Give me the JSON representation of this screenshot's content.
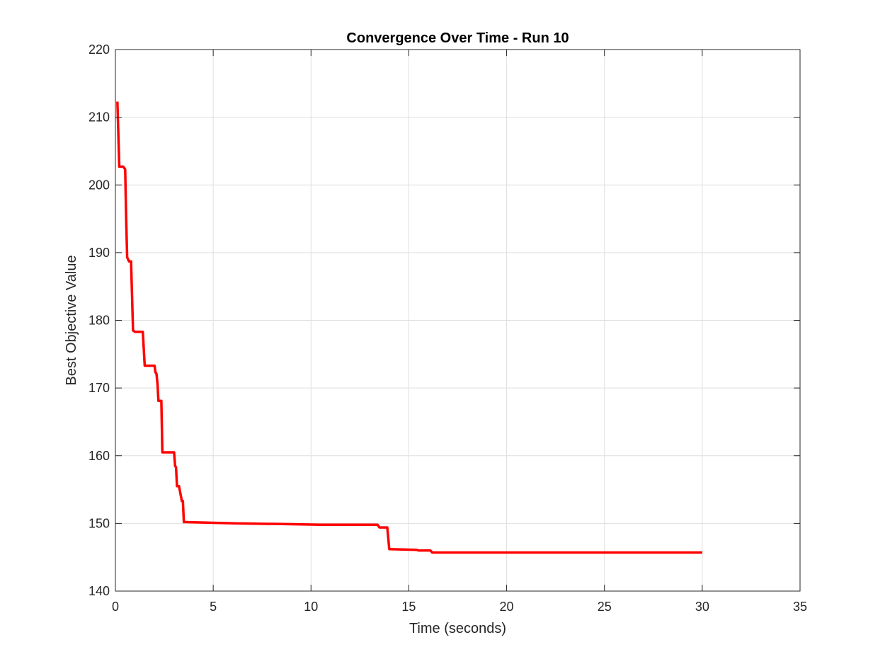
{
  "chart_data": {
    "type": "line",
    "title": "Convergence Over Time - Run 10",
    "xlabel": "Time (seconds)",
    "ylabel": "Best Objective Value",
    "xlim": [
      0,
      35
    ],
    "ylim": [
      140,
      220
    ],
    "xticks": [
      0,
      5,
      10,
      15,
      20,
      25,
      30,
      35
    ],
    "yticks": [
      140,
      150,
      160,
      170,
      180,
      190,
      200,
      210,
      220
    ],
    "grid": true,
    "line_color": "#ff0000",
    "series": [
      {
        "x": [
          0.1,
          0.2,
          0.4,
          0.5,
          0.55,
          0.6,
          0.7,
          0.8,
          0.9,
          1.0,
          1.4,
          1.5,
          1.6,
          2.0,
          2.05,
          2.1,
          2.15,
          2.2,
          2.25,
          2.35,
          2.4,
          2.5,
          3.0,
          3.05,
          3.1,
          3.15,
          3.2,
          3.25,
          3.4,
          3.45,
          3.5,
          3.6,
          6.2,
          8.5,
          10.5,
          13.4,
          13.5,
          13.9,
          14.0,
          15.4,
          15.5,
          16.1,
          16.2,
          30.0
        ],
        "y": [
          212.3,
          202.7,
          202.7,
          202.3,
          195,
          189.3,
          188.7,
          188.7,
          178.5,
          178.3,
          178.3,
          173.3,
          173.3,
          173.3,
          172.3,
          172.1,
          170.7,
          168.1,
          168.1,
          168.1,
          160.5,
          160.5,
          160.5,
          158.5,
          158.3,
          155.5,
          155.5,
          155.5,
          153.3,
          153.3,
          150.2,
          150.2,
          150.0,
          149.9,
          149.8,
          149.8,
          149.4,
          149.4,
          146.2,
          146.1,
          146.0,
          146.0,
          145.7,
          145.7
        ]
      }
    ]
  }
}
